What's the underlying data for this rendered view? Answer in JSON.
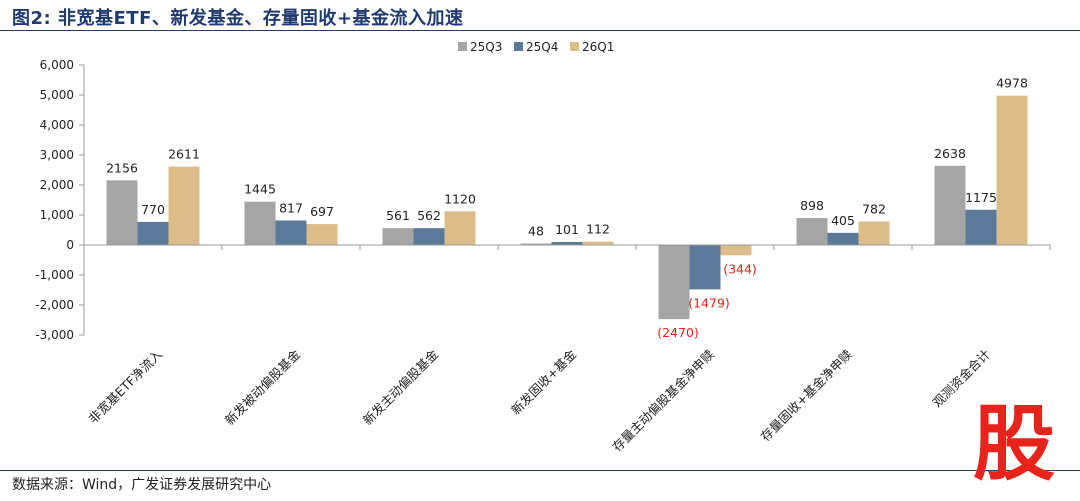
{
  "header": {
    "title": "图2: 非宽基ETF、新发基金、存量固收+基金流入加速"
  },
  "footer": {
    "source": "数据来源：Wind，广发证券发展研究中心"
  },
  "logo": {
    "glyph": "股",
    "color": "#e8231c"
  },
  "chart_data": {
    "type": "bar",
    "title": "",
    "categories": [
      "非宽基ETF净流入",
      "新发被动偏股基金",
      "新发主动偏股基金",
      "新发固收+基金",
      "存量主动偏股基金净申赎",
      "存量固收+基金净申赎",
      "观测资金合计"
    ],
    "series": [
      {
        "name": "25Q3",
        "color": "#a5a5a5",
        "values": [
          2156,
          1445,
          561,
          48,
          -2470,
          898,
          2638
        ]
      },
      {
        "name": "25Q4",
        "color": "#5b7a99",
        "values": [
          770,
          817,
          562,
          101,
          -1479,
          405,
          1175
        ]
      },
      {
        "name": "26Q1",
        "color": "#dcbd8a",
        "values": [
          2611,
          697,
          1120,
          112,
          -344,
          782,
          4978
        ]
      }
    ],
    "data_labels": [
      [
        "2156",
        "1445",
        "561",
        "48",
        "(2470)",
        "898",
        "2638"
      ],
      [
        "770",
        "817",
        "562",
        "101",
        "(1479)",
        "405",
        "1175"
      ],
      [
        "2611",
        "697",
        "1120",
        "112",
        "(344)",
        "782",
        "4978"
      ]
    ],
    "ylim": [
      -3000,
      6000
    ],
    "yticks": [
      -3000,
      -2000,
      -1000,
      0,
      1000,
      2000,
      3000,
      4000,
      5000,
      6000
    ],
    "ytick_labels": [
      "-3,000",
      "-2,000",
      "-1,000",
      "0",
      "1,000",
      "2,000",
      "3,000",
      "4,000",
      "5,000",
      "6,000"
    ],
    "negative_label_color": "#e3231b",
    "legend_position": "top-center",
    "grid": false,
    "xlabel": "",
    "ylabel": ""
  }
}
